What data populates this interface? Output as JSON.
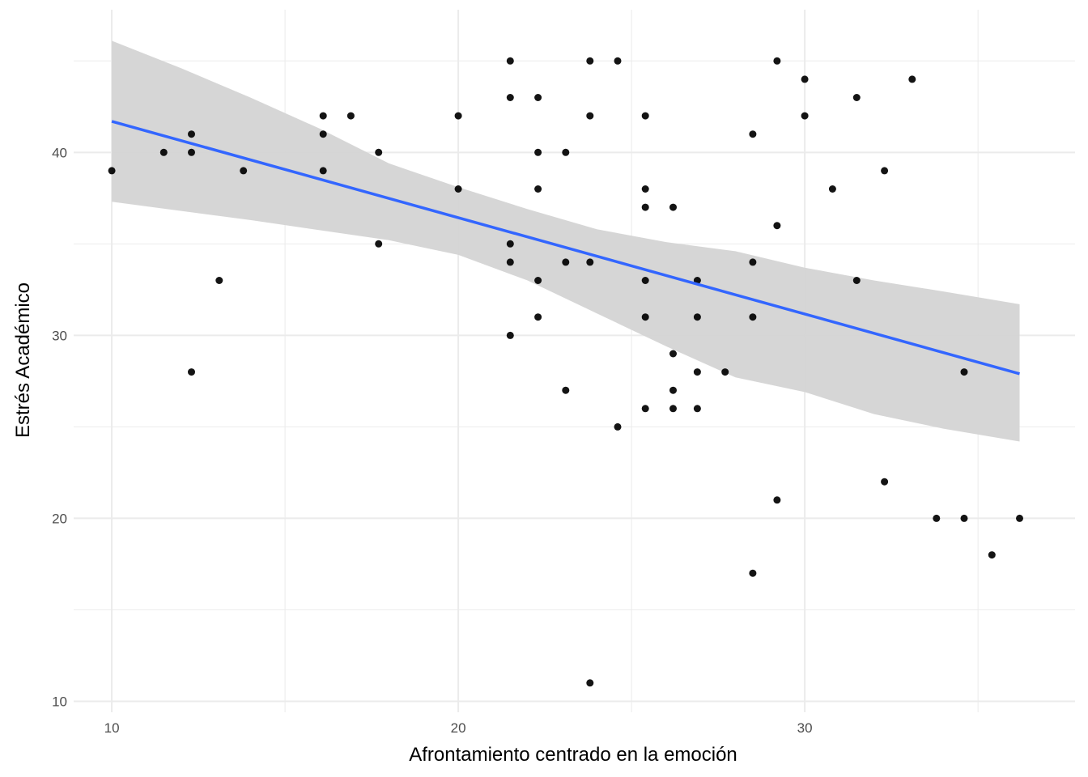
{
  "chart_data": {
    "type": "scatter",
    "title": "",
    "xlabel": "Afrontamiento centrado en la emoción",
    "ylabel": "Estrés Académico",
    "xlim": [
      8.9,
      37.8
    ],
    "ylim": [
      9.4,
      47.8
    ],
    "x_ticks_major": [
      10,
      20,
      30
    ],
    "x_ticks_minor": [
      15,
      25,
      35
    ],
    "y_ticks_major": [
      10,
      20,
      30,
      40
    ],
    "y_ticks_minor": [
      15,
      25,
      35,
      45
    ],
    "x_tick_labels": [
      "10",
      "20",
      "30"
    ],
    "y_tick_labels": [
      "10",
      "20",
      "30",
      "40"
    ],
    "grid": true,
    "points": [
      [
        10,
        39
      ],
      [
        11.5,
        40
      ],
      [
        12.3,
        41
      ],
      [
        12.3,
        40
      ],
      [
        12.3,
        28
      ],
      [
        13.1,
        33
      ],
      [
        13.8,
        39
      ],
      [
        16.1,
        42
      ],
      [
        16.1,
        41
      ],
      [
        16.1,
        39
      ],
      [
        16.9,
        42
      ],
      [
        17.7,
        40
      ],
      [
        17.7,
        35
      ],
      [
        20,
        42
      ],
      [
        20,
        38
      ],
      [
        21.5,
        45
      ],
      [
        21.5,
        43
      ],
      [
        21.5,
        35
      ],
      [
        21.5,
        34
      ],
      [
        21.5,
        30
      ],
      [
        22.3,
        43
      ],
      [
        22.3,
        40
      ],
      [
        22.3,
        38
      ],
      [
        22.3,
        33
      ],
      [
        22.3,
        31
      ],
      [
        23.1,
        40
      ],
      [
        23.1,
        34
      ],
      [
        23.1,
        27
      ],
      [
        23.8,
        45
      ],
      [
        23.8,
        42
      ],
      [
        23.8,
        34
      ],
      [
        23.8,
        11
      ],
      [
        24.6,
        45
      ],
      [
        24.6,
        25
      ],
      [
        25.4,
        42
      ],
      [
        25.4,
        38
      ],
      [
        25.4,
        37
      ],
      [
        25.4,
        33
      ],
      [
        25.4,
        31
      ],
      [
        25.4,
        26
      ],
      [
        26.2,
        37
      ],
      [
        26.2,
        29
      ],
      [
        26.2,
        27
      ],
      [
        26.2,
        26
      ],
      [
        26.9,
        33
      ],
      [
        26.9,
        31
      ],
      [
        26.9,
        28
      ],
      [
        26.9,
        26
      ],
      [
        27.7,
        28
      ],
      [
        28.5,
        41
      ],
      [
        28.5,
        34
      ],
      [
        28.5,
        31
      ],
      [
        28.5,
        17
      ],
      [
        29.2,
        45
      ],
      [
        29.2,
        36
      ],
      [
        29.2,
        21
      ],
      [
        30,
        44
      ],
      [
        30,
        42
      ],
      [
        30.8,
        38
      ],
      [
        31.5,
        43
      ],
      [
        31.5,
        33
      ],
      [
        32.3,
        39
      ],
      [
        32.3,
        22
      ],
      [
        33.1,
        44
      ],
      [
        33.8,
        20
      ],
      [
        34.6,
        28
      ],
      [
        34.6,
        20
      ],
      [
        35.4,
        18
      ],
      [
        36.2,
        20
      ]
    ],
    "fit": {
      "method": "lm",
      "color": "#3366FF",
      "x_range": [
        10,
        36.2
      ],
      "line": [
        [
          10,
          41.7
        ],
        [
          36.2,
          27.9
        ]
      ],
      "ci_lower": [
        [
          10,
          37.3
        ],
        [
          14,
          36.3
        ],
        [
          18,
          35.2
        ],
        [
          20,
          34.4
        ],
        [
          22,
          33.0
        ],
        [
          24,
          31.2
        ],
        [
          26,
          29.4
        ],
        [
          28,
          27.7
        ],
        [
          30,
          26.9
        ],
        [
          32,
          25.7
        ],
        [
          34,
          24.9
        ],
        [
          36.2,
          24.2
        ]
      ],
      "ci_upper": [
        [
          10,
          46.1
        ],
        [
          12,
          44.6
        ],
        [
          14,
          43.0
        ],
        [
          16,
          41.3
        ],
        [
          18,
          39.4
        ],
        [
          20,
          38.1
        ],
        [
          22,
          36.9
        ],
        [
          24,
          35.8
        ],
        [
          26,
          35.1
        ],
        [
          28,
          34.6
        ],
        [
          30,
          33.7
        ],
        [
          32,
          33.0
        ],
        [
          34,
          32.4
        ],
        [
          36.2,
          31.7
        ]
      ],
      "band_color": "#d4d4d4"
    },
    "point_color": "#000000",
    "gridline_color": "#ebebeb"
  }
}
